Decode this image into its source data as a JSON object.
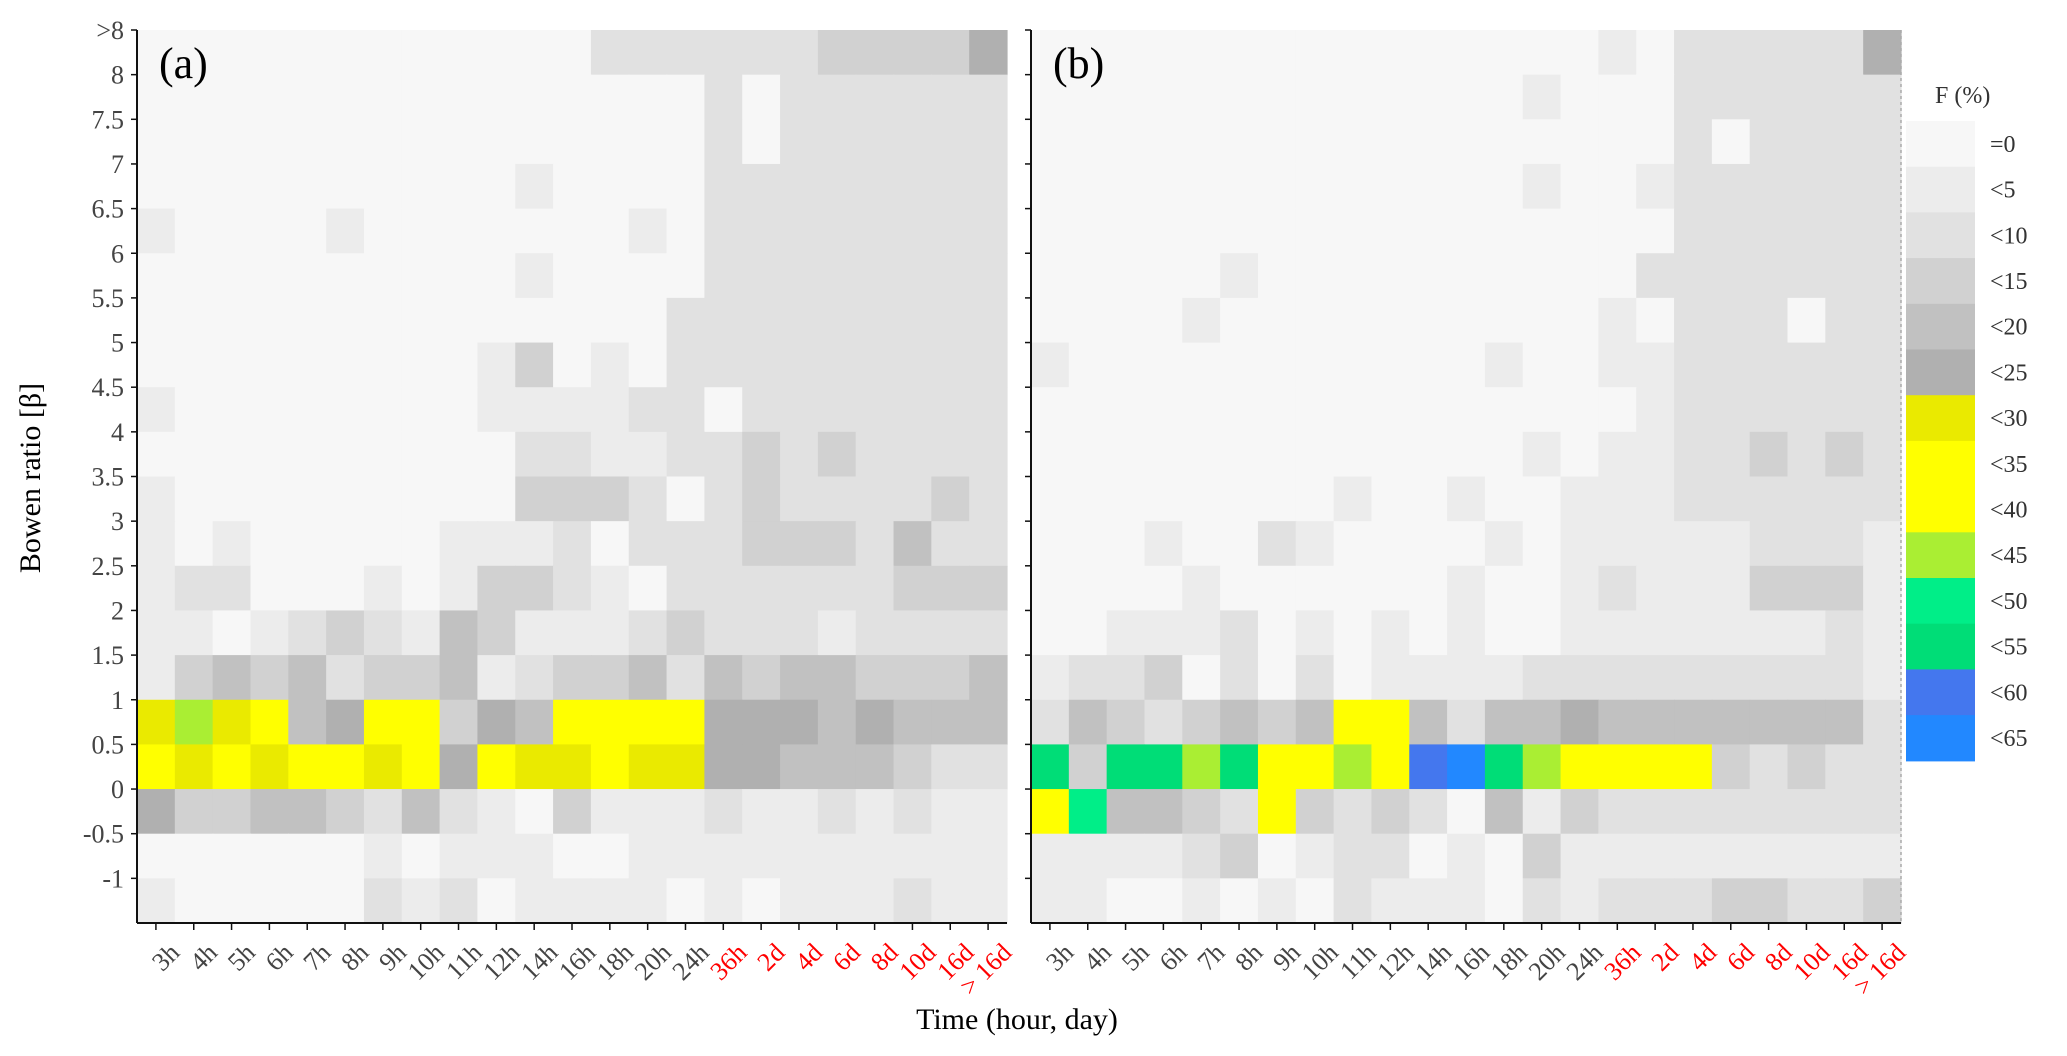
{
  "chart_data": {
    "type": "heatmap",
    "xlabel": "Time (hour, day)",
    "ylabel": "Bowen ratio [β]",
    "x_categories": [
      "3h",
      "4h",
      "5h",
      "6h",
      "7h",
      "8h",
      "9h",
      "10h",
      "11h",
      "12h",
      "14h",
      "16h",
      "18h",
      "20h",
      "24h",
      "36h",
      "2d",
      "4d",
      "6d",
      "8d",
      "10d",
      "16d",
      "> 16d"
    ],
    "x_highlight": [
      "36h",
      "2d",
      "4d",
      "6d",
      "8d",
      "10d",
      "16d",
      "> 16d"
    ],
    "highlight_color": "#ff0000",
    "y_ticks": [
      ">8",
      "8",
      "7.5",
      "7",
      "6.5",
      "6",
      "5.5",
      "5",
      "4.5",
      "4",
      "3.5",
      "3",
      "2.5",
      "2",
      "1.5",
      "1",
      "0.5",
      "0",
      "-0.5",
      "-1"
    ],
    "row_bands_top_to_bottom": [
      ">8",
      "7.5–8",
      "7–7.5",
      "6.5–7",
      "6–6.5",
      "5.5–6",
      "5–5.5",
      "4.5–5",
      "4–4.5",
      "3.5–4",
      "3–3.5",
      "2.5–3",
      "2–2.5",
      "1.5–2",
      "1–1.5",
      "0.5–1",
      "0–0.5",
      "-0.5–0",
      "-1–-0.5",
      "<-1"
    ],
    "legend": {
      "title": "F (%)",
      "labels": [
        "=0",
        "<5",
        "<10",
        "<15",
        "<20",
        "<25",
        "<30",
        "<35",
        "<40",
        "<45",
        "<50",
        "<55",
        "<60",
        "<65"
      ],
      "colors": [
        "#f7f7f7",
        "#ececec",
        "#e1e1e1",
        "#d1d1d1",
        "#c1c1c1",
        "#b0b0b0",
        "#eaea00",
        "#ffff00",
        "#ffff00",
        "#aaee33",
        "#00ee88",
        "#00dd77",
        "#4477ee",
        "#2288ff"
      ]
    },
    "panels": [
      {
        "label": "(a)",
        "cells": [
          [
            0,
            0,
            0,
            0,
            0,
            0,
            0,
            0,
            0,
            0,
            0,
            0,
            2,
            2,
            2,
            2,
            2,
            2,
            3,
            3,
            3,
            3,
            5
          ],
          [
            0,
            0,
            0,
            0,
            0,
            0,
            0,
            0,
            0,
            0,
            0,
            0,
            0,
            0,
            0,
            2,
            0,
            2,
            2,
            2,
            2,
            2,
            2
          ],
          [
            0,
            0,
            0,
            0,
            0,
            0,
            0,
            0,
            0,
            0,
            0,
            0,
            0,
            0,
            0,
            2,
            0,
            2,
            2,
            2,
            2,
            2,
            2
          ],
          [
            0,
            0,
            0,
            0,
            0,
            0,
            0,
            0,
            0,
            0,
            1,
            0,
            0,
            0,
            0,
            2,
            2,
            2,
            2,
            2,
            2,
            2,
            2
          ],
          [
            1,
            0,
            0,
            0,
            0,
            1,
            0,
            0,
            0,
            0,
            0,
            0,
            0,
            1,
            0,
            2,
            2,
            2,
            2,
            2,
            2,
            2,
            2
          ],
          [
            0,
            0,
            0,
            0,
            0,
            0,
            0,
            0,
            0,
            0,
            1,
            0,
            0,
            0,
            0,
            2,
            2,
            2,
            2,
            2,
            2,
            2,
            2
          ],
          [
            0,
            0,
            0,
            0,
            0,
            0,
            0,
            0,
            0,
            0,
            0,
            0,
            0,
            0,
            2,
            2,
            2,
            2,
            2,
            2,
            2,
            2,
            2
          ],
          [
            0,
            0,
            0,
            0,
            0,
            0,
            0,
            0,
            0,
            1,
            3,
            0,
            1,
            0,
            2,
            2,
            2,
            2,
            2,
            2,
            2,
            2,
            2
          ],
          [
            1,
            0,
            0,
            0,
            0,
            0,
            0,
            0,
            0,
            1,
            1,
            1,
            1,
            2,
            2,
            0,
            2,
            2,
            2,
            2,
            2,
            2,
            2
          ],
          [
            0,
            0,
            0,
            0,
            0,
            0,
            0,
            0,
            0,
            0,
            2,
            2,
            1,
            1,
            2,
            2,
            3,
            2,
            3,
            2,
            2,
            2,
            2
          ],
          [
            1,
            0,
            0,
            0,
            0,
            0,
            0,
            0,
            0,
            0,
            3,
            3,
            3,
            2,
            0,
            2,
            3,
            2,
            2,
            2,
            2,
            3,
            2
          ],
          [
            1,
            0,
            1,
            0,
            0,
            0,
            0,
            0,
            1,
            1,
            1,
            2,
            0,
            2,
            2,
            2,
            3,
            3,
            3,
            2,
            4,
            2,
            2
          ],
          [
            1,
            2,
            2,
            0,
            0,
            0,
            1,
            0,
            1,
            3,
            3,
            2,
            1,
            0,
            2,
            2,
            2,
            2,
            2,
            2,
            3,
            3,
            3
          ],
          [
            1,
            1,
            0,
            1,
            2,
            3,
            2,
            1,
            4,
            3,
            1,
            1,
            1,
            2,
            3,
            2,
            2,
            2,
            1,
            2,
            2,
            2,
            2
          ],
          [
            1,
            3,
            4,
            3,
            4,
            2,
            3,
            3,
            4,
            1,
            2,
            3,
            3,
            4,
            2,
            4,
            3,
            4,
            4,
            3,
            3,
            3,
            4
          ],
          [
            6,
            9,
            6,
            7,
            4,
            5,
            7,
            7,
            3,
            5,
            4,
            7,
            7,
            7,
            7,
            5,
            5,
            5,
            4,
            5,
            4,
            4,
            4
          ],
          [
            7,
            6,
            7,
            6,
            7,
            7,
            6,
            7,
            5,
            7,
            6,
            6,
            7,
            6,
            6,
            5,
            5,
            4,
            4,
            4,
            3,
            2,
            2
          ],
          [
            5,
            3,
            3,
            4,
            4,
            3,
            2,
            4,
            2,
            1,
            0,
            3,
            1,
            1,
            1,
            2,
            1,
            1,
            2,
            1,
            2,
            1,
            1
          ],
          [
            0,
            0,
            0,
            0,
            0,
            0,
            1,
            0,
            1,
            1,
            1,
            0,
            0,
            1,
            1,
            1,
            1,
            1,
            1,
            1,
            1,
            1,
            1
          ],
          [
            1,
            0,
            0,
            0,
            0,
            0,
            2,
            1,
            2,
            0,
            1,
            1,
            1,
            1,
            0,
            1,
            0,
            1,
            1,
            1,
            2,
            1,
            1
          ]
        ]
      },
      {
        "label": "(b)",
        "cells": [
          [
            0,
            0,
            0,
            0,
            0,
            0,
            0,
            0,
            0,
            0,
            0,
            0,
            0,
            0,
            0,
            1,
            0,
            2,
            2,
            2,
            2,
            2,
            5
          ],
          [
            0,
            0,
            0,
            0,
            0,
            0,
            0,
            0,
            0,
            0,
            0,
            0,
            0,
            1,
            0,
            0,
            0,
            2,
            2,
            2,
            2,
            2,
            2
          ],
          [
            0,
            0,
            0,
            0,
            0,
            0,
            0,
            0,
            0,
            0,
            0,
            0,
            0,
            0,
            0,
            0,
            0,
            2,
            0,
            2,
            2,
            2,
            2
          ],
          [
            0,
            0,
            0,
            0,
            0,
            0,
            0,
            0,
            0,
            0,
            0,
            0,
            0,
            1,
            0,
            0,
            1,
            2,
            2,
            2,
            2,
            2,
            2
          ],
          [
            0,
            0,
            0,
            0,
            0,
            0,
            0,
            0,
            0,
            0,
            0,
            0,
            0,
            0,
            0,
            0,
            0,
            2,
            2,
            2,
            2,
            2,
            2
          ],
          [
            0,
            0,
            0,
            0,
            0,
            1,
            0,
            0,
            0,
            0,
            0,
            0,
            0,
            0,
            0,
            0,
            2,
            2,
            2,
            2,
            2,
            2,
            2
          ],
          [
            0,
            0,
            0,
            0,
            1,
            0,
            0,
            0,
            0,
            0,
            0,
            0,
            0,
            0,
            0,
            1,
            0,
            2,
            2,
            2,
            0,
            2,
            2
          ],
          [
            1,
            0,
            0,
            0,
            0,
            0,
            0,
            0,
            0,
            0,
            0,
            0,
            1,
            0,
            0,
            1,
            1,
            2,
            2,
            2,
            2,
            2,
            2
          ],
          [
            0,
            0,
            0,
            0,
            0,
            0,
            0,
            0,
            0,
            0,
            0,
            0,
            0,
            0,
            0,
            0,
            1,
            2,
            2,
            2,
            2,
            2,
            2
          ],
          [
            0,
            0,
            0,
            0,
            0,
            0,
            0,
            0,
            0,
            0,
            0,
            0,
            0,
            1,
            0,
            1,
            1,
            2,
            2,
            3,
            2,
            3,
            2
          ],
          [
            0,
            0,
            0,
            0,
            0,
            0,
            0,
            0,
            1,
            0,
            0,
            1,
            0,
            0,
            1,
            1,
            1,
            2,
            2,
            2,
            2,
            2,
            2
          ],
          [
            0,
            0,
            0,
            1,
            0,
            0,
            2,
            1,
            0,
            0,
            0,
            0,
            1,
            0,
            1,
            1,
            1,
            1,
            1,
            2,
            2,
            2,
            1
          ],
          [
            0,
            0,
            0,
            0,
            1,
            0,
            0,
            0,
            0,
            0,
            0,
            1,
            0,
            0,
            1,
            2,
            1,
            1,
            1,
            3,
            3,
            3,
            1
          ],
          [
            0,
            0,
            1,
            1,
            1,
            2,
            0,
            1,
            0,
            1,
            0,
            1,
            0,
            0,
            1,
            1,
            1,
            1,
            1,
            1,
            1,
            2,
            1
          ],
          [
            1,
            2,
            2,
            3,
            0,
            2,
            0,
            2,
            0,
            1,
            1,
            1,
            1,
            2,
            2,
            2,
            2,
            2,
            2,
            2,
            2,
            2,
            1
          ],
          [
            2,
            4,
            3,
            2,
            3,
            4,
            3,
            4,
            7,
            7,
            4,
            2,
            4,
            4,
            5,
            4,
            4,
            4,
            4,
            4,
            4,
            4,
            2
          ],
          [
            11,
            3,
            11,
            11,
            9,
            11,
            8,
            8,
            9,
            8,
            12,
            13,
            11,
            9,
            8,
            8,
            7,
            8,
            3,
            2,
            3,
            2,
            2
          ],
          [
            8,
            10,
            4,
            4,
            3,
            2,
            8,
            3,
            2,
            3,
            2,
            0,
            4,
            1,
            3,
            2,
            2,
            2,
            2,
            2,
            2,
            2,
            2
          ],
          [
            1,
            1,
            1,
            1,
            2,
            3,
            0,
            1,
            2,
            2,
            0,
            1,
            0,
            3,
            1,
            1,
            1,
            1,
            1,
            1,
            1,
            1,
            1
          ],
          [
            1,
            1,
            0,
            0,
            1,
            0,
            1,
            0,
            2,
            1,
            1,
            1,
            0,
            2,
            1,
            2,
            2,
            2,
            3,
            3,
            2,
            2,
            3
          ]
        ]
      }
    ]
  }
}
